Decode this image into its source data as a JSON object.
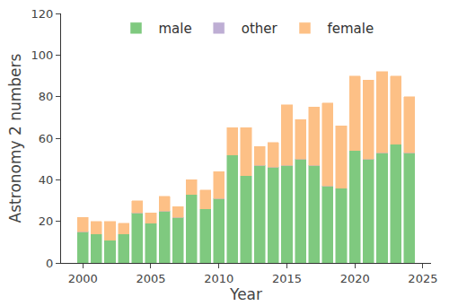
{
  "chart_data": {
    "type": "bar",
    "stacked": true,
    "x": [
      2000,
      2001,
      2002,
      2003,
      2004,
      2005,
      2006,
      2007,
      2008,
      2009,
      2010,
      2011,
      2012,
      2013,
      2014,
      2015,
      2016,
      2017,
      2018,
      2019,
      2020,
      2021,
      2022,
      2023,
      2024
    ],
    "series": [
      {
        "name": "male",
        "color": "#7fc97f",
        "values": [
          15,
          14,
          11,
          14,
          24,
          19,
          25,
          22,
          33,
          26,
          31,
          52,
          42,
          47,
          46,
          47,
          50,
          47,
          37,
          36,
          54,
          50,
          53,
          57,
          53
        ]
      },
      {
        "name": "other",
        "color": "#beaed4",
        "values": [
          0,
          0,
          0,
          0,
          0,
          0,
          0,
          0,
          0,
          0,
          0,
          0,
          0,
          0,
          0,
          0,
          0,
          0,
          0,
          0,
          0,
          0,
          0,
          0,
          0
        ]
      },
      {
        "name": "female",
        "color": "#fdc086",
        "values": [
          7,
          6,
          9,
          5,
          6,
          5,
          7,
          5,
          7,
          9,
          13,
          13,
          23,
          9,
          12,
          29,
          19,
          28,
          40,
          30,
          36,
          38,
          39,
          33,
          27
        ]
      }
    ],
    "x_label": "Year",
    "y_label": "Astronomy 2 numbers",
    "xlim": [
      1998.4,
      2025.6
    ],
    "xticks": [
      2000,
      2005,
      2010,
      2015,
      2020,
      2025
    ],
    "ylim": [
      0,
      120
    ],
    "yticks": [
      0,
      20,
      40,
      60,
      80,
      100,
      120
    ],
    "grid": false,
    "legend": "top"
  }
}
